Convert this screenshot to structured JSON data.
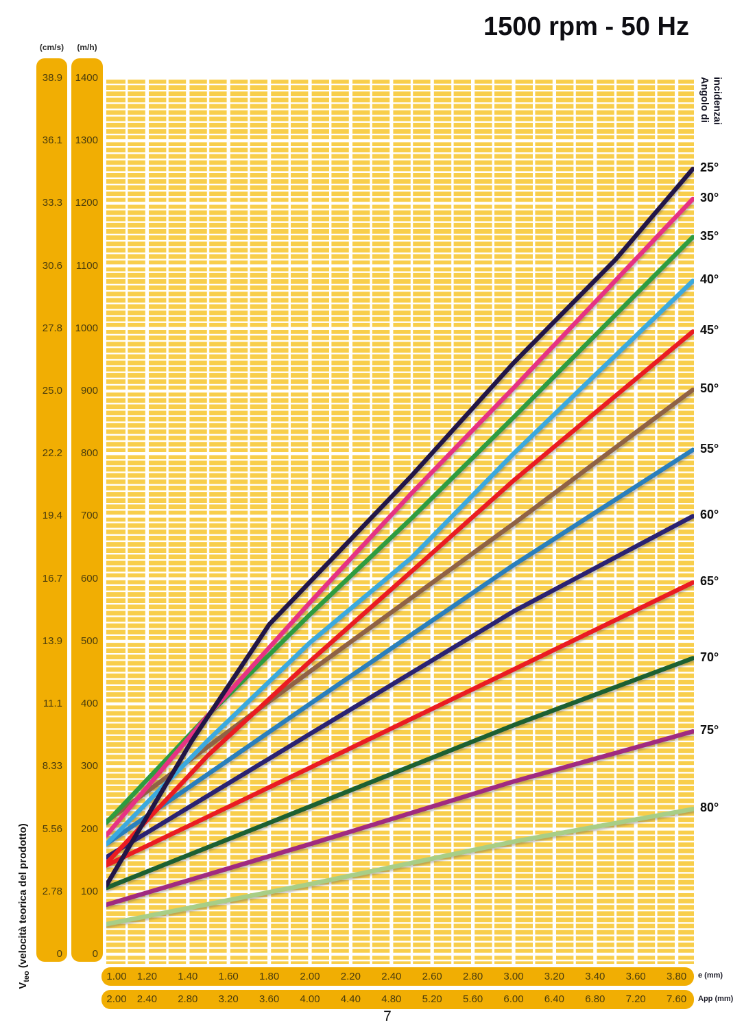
{
  "title": "1500 rpm - 50 Hz",
  "page_number": "7",
  "y_axis": {
    "unit_cms": "(cm/s)",
    "unit_mh": "(m/h)",
    "title_main": "V",
    "title_sub": "teo",
    "title_rest": " (velocità teorica del prodotto)",
    "ticks": [
      {
        "cms": "38.9",
        "mh": "1400",
        "v": 1400
      },
      {
        "cms": "36.1",
        "mh": "1300",
        "v": 1300
      },
      {
        "cms": "33.3",
        "mh": "1200",
        "v": 1200
      },
      {
        "cms": "30.6",
        "mh": "1100",
        "v": 1100
      },
      {
        "cms": "27.8",
        "mh": "1000",
        "v": 1000
      },
      {
        "cms": "25.0",
        "mh": "900",
        "v": 900
      },
      {
        "cms": "22.2",
        "mh": "800",
        "v": 800
      },
      {
        "cms": "19.4",
        "mh": "700",
        "v": 700
      },
      {
        "cms": "16.7",
        "mh": "600",
        "v": 600
      },
      {
        "cms": "13.9",
        "mh": "500",
        "v": 500
      },
      {
        "cms": "11.1",
        "mh": "400",
        "v": 400
      },
      {
        "cms": "8.33",
        "mh": "300",
        "v": 300
      },
      {
        "cms": "5.56",
        "mh": "200",
        "v": 200
      },
      {
        "cms": "2.78",
        "mh": "100",
        "v": 100
      },
      {
        "cms": "0",
        "mh": "0",
        "v": 0
      }
    ]
  },
  "x_axis": {
    "row1_label": "e (mm)",
    "row2_label": "App (mm)",
    "ticks": [
      {
        "e": 1.0,
        "e_label": "1.00",
        "app_label": "2.00"
      },
      {
        "e": 1.2,
        "e_label": "1.20",
        "app_label": "2.40"
      },
      {
        "e": 1.4,
        "e_label": "1.40",
        "app_label": "2.80"
      },
      {
        "e": 1.6,
        "e_label": "1.60",
        "app_label": "3.20"
      },
      {
        "e": 1.8,
        "e_label": "1.80",
        "app_label": "3.60"
      },
      {
        "e": 2.0,
        "e_label": "2.00",
        "app_label": "4.00"
      },
      {
        "e": 2.2,
        "e_label": "2.20",
        "app_label": "4.40"
      },
      {
        "e": 2.4,
        "e_label": "2.40",
        "app_label": "4.80"
      },
      {
        "e": 2.6,
        "e_label": "2.60",
        "app_label": "5.20"
      },
      {
        "e": 2.8,
        "e_label": "2.80",
        "app_label": "5.60"
      },
      {
        "e": 3.0,
        "e_label": "3.00",
        "app_label": "6.00"
      },
      {
        "e": 3.2,
        "e_label": "3.20",
        "app_label": "6.40"
      },
      {
        "e": 3.4,
        "e_label": "3.40",
        "app_label": "6.80"
      },
      {
        "e": 3.6,
        "e_label": "3.60",
        "app_label": "7.20"
      },
      {
        "e": 3.8,
        "e_label": "3.80",
        "app_label": "7.60"
      }
    ]
  },
  "right_axis": {
    "line1": "Angolo di",
    "line2": "incidenzai"
  },
  "colors": {
    "grid_bg": "#F8CE4B",
    "grid_line": "#FFFFFF",
    "bar_bg": "#F1AE03"
  },
  "chart_data": {
    "type": "line",
    "xlabel": "e (mm) / App (mm)",
    "ylabel": "Vteo (velocità teorica del prodotto) (cm/s, m/h)",
    "x_range": [
      1.0,
      3.9
    ],
    "y_range_mh": [
      0,
      1400
    ],
    "grid": "on",
    "legend_position": "right",
    "series": [
      {
        "label": "80°",
        "color": "#A8CE87",
        "points": [
          [
            1.0,
            48
          ],
          [
            2.0,
            112
          ],
          [
            3.0,
            180
          ],
          [
            3.88,
            232
          ]
        ]
      },
      {
        "label": "75°",
        "color": "#A02A80",
        "points": [
          [
            1.0,
            79
          ],
          [
            2.0,
            176
          ],
          [
            3.0,
            276
          ],
          [
            3.88,
            356
          ]
        ]
      },
      {
        "label": "70°",
        "color": "#1C6132",
        "points": [
          [
            1.0,
            106
          ],
          [
            2.0,
            236
          ],
          [
            3.0,
            366
          ],
          [
            3.88,
            473
          ]
        ]
      },
      {
        "label": "65°",
        "color": "#EA1C21",
        "points": [
          [
            1.0,
            142
          ],
          [
            2.0,
            298
          ],
          [
            3.0,
            455
          ],
          [
            3.88,
            594
          ]
        ]
      },
      {
        "label": "60°",
        "color": "#2A2172",
        "points": [
          [
            1.0,
            155
          ],
          [
            2.0,
            352
          ],
          [
            3.0,
            548
          ],
          [
            3.88,
            700
          ]
        ]
      },
      {
        "label": "55°",
        "color": "#2A7FBC",
        "points": [
          [
            1.0,
            176
          ],
          [
            2.0,
            400
          ],
          [
            3.0,
            622
          ],
          [
            3.88,
            806
          ]
        ]
      },
      {
        "label": "50°",
        "color": "#8F6244",
        "points": [
          [
            1.0,
            212
          ],
          [
            2.0,
            452
          ],
          [
            3.0,
            688
          ],
          [
            3.88,
            902
          ]
        ]
      },
      {
        "label": "45°",
        "color": "#EA1C21",
        "points": [
          [
            1.0,
            145
          ],
          [
            1.5,
            318
          ],
          [
            2.0,
            468
          ],
          [
            2.5,
            612
          ],
          [
            3.0,
            757
          ],
          [
            3.88,
            995
          ]
        ]
      },
      {
        "label": "40°",
        "color": "#3BA9DE",
        "points": [
          [
            1.0,
            176
          ],
          [
            1.5,
            342
          ],
          [
            2.0,
            498
          ],
          [
            2.5,
            634
          ],
          [
            3.0,
            800
          ],
          [
            3.88,
            1076
          ]
        ]
      },
      {
        "label": "35°",
        "color": "#2E9C40",
        "points": [
          [
            1.0,
            210
          ],
          [
            1.5,
            382
          ],
          [
            2.0,
            543
          ],
          [
            2.5,
            697
          ],
          [
            3.0,
            858
          ],
          [
            3.88,
            1146
          ]
        ]
      },
      {
        "label": "30°",
        "color": "#E63283",
        "points": [
          [
            1.0,
            190
          ],
          [
            1.5,
            382
          ],
          [
            2.0,
            562
          ],
          [
            2.5,
            737
          ],
          [
            3.0,
            905
          ],
          [
            3.88,
            1207
          ]
        ]
      },
      {
        "label": "25°",
        "color": "#231647",
        "points": [
          [
            1.0,
            110
          ],
          [
            1.42,
            341
          ],
          [
            1.8,
            527
          ],
          [
            2.5,
            765
          ],
          [
            3.0,
            945
          ],
          [
            3.5,
            1110
          ],
          [
            3.88,
            1255
          ]
        ]
      }
    ]
  }
}
